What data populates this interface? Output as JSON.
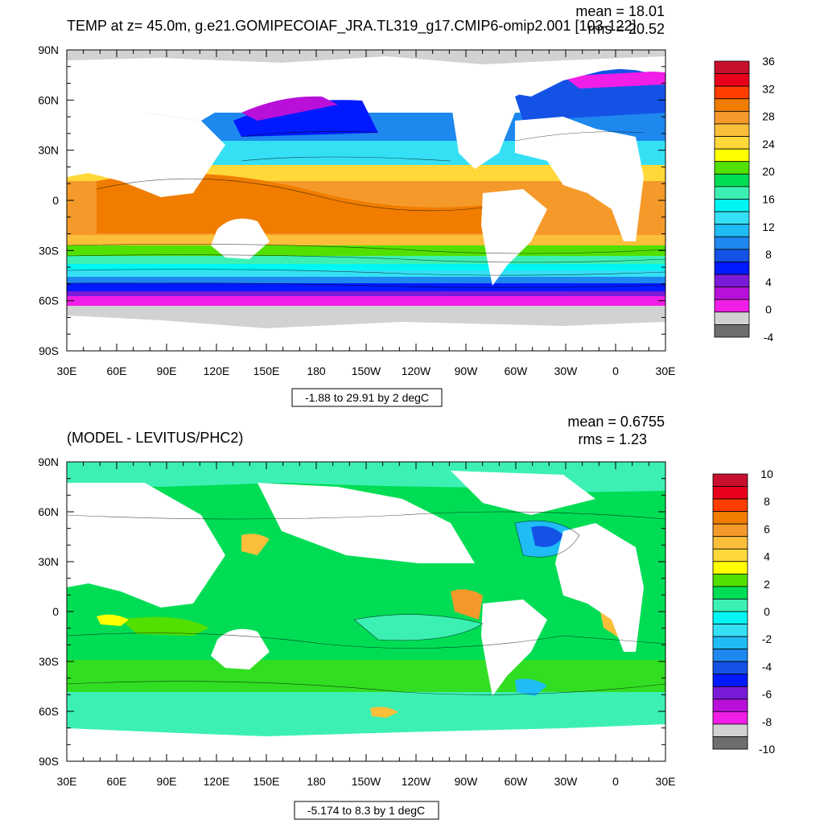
{
  "panels": [
    {
      "id": "top",
      "title": "TEMP at z=  45.0m, g.e21.GOMIPECOIAF_JRA.TL319_g17.CMIP6-omip2.001 [103-122]",
      "stats": [
        "mean = 18.01",
        "rms = 20.52"
      ],
      "range_label": "-1.88 to 29.91 by 2 degC",
      "lat_labels": [
        "90N",
        "60N",
        "30N",
        "0",
        "30S",
        "60S",
        "90S"
      ],
      "lon_labels": [
        "30E",
        "60E",
        "90E",
        "120E",
        "150E",
        "180",
        "150W",
        "120W",
        "90W",
        "60W",
        "30W",
        "0",
        "30E"
      ],
      "colorbar": {
        "labels": [
          "36",
          "32",
          "28",
          "24",
          "20",
          "16",
          "12",
          "8",
          "4",
          "0",
          "-4"
        ],
        "colors": [
          "#c8102e",
          "#e8001a",
          "#ff3d00",
          "#f07d00",
          "#f59a2a",
          "#fbbf3a",
          "#ffd83a",
          "#ffff00",
          "#52e000",
          "#00dd55",
          "#3cf0b4",
          "#00f5f5",
          "#35e0f5",
          "#1fbcf5",
          "#1e88ee",
          "#1452e6",
          "#0019ff",
          "#7a1ad9",
          "#b810d9",
          "#f01ee6",
          "#d2d2d2",
          "#6e6e6e"
        ]
      }
    },
    {
      "id": "bottom",
      "title": "(MODEL - LEVITUS/PHC2)",
      "stats": [
        "mean = 0.6755",
        "rms = 1.23"
      ],
      "range_label": "-5.174 to 8.3 by 1 degC",
      "lat_labels": [
        "90N",
        "60N",
        "30N",
        "0",
        "30S",
        "60S",
        "90S"
      ],
      "lon_labels": [
        "30E",
        "60E",
        "90E",
        "120E",
        "150E",
        "180",
        "150W",
        "120W",
        "90W",
        "60W",
        "30W",
        "0",
        "30E"
      ],
      "colorbar": {
        "labels": [
          "10",
          "8",
          "6",
          "4",
          "2",
          "0",
          "-2",
          "-4",
          "-6",
          "-8",
          "-10"
        ],
        "colors": [
          "#c8102e",
          "#e8001a",
          "#ff3d00",
          "#f07d00",
          "#f59a2a",
          "#fbbf3a",
          "#ffd83a",
          "#ffff00",
          "#52e000",
          "#00dd55",
          "#3cf0b4",
          "#00f5f5",
          "#35e0f5",
          "#1fbcf5",
          "#1e88ee",
          "#1452e6",
          "#0019ff",
          "#7a1ad9",
          "#b810d9",
          "#f01ee6",
          "#d2d2d2",
          "#6e6e6e"
        ]
      }
    }
  ]
}
